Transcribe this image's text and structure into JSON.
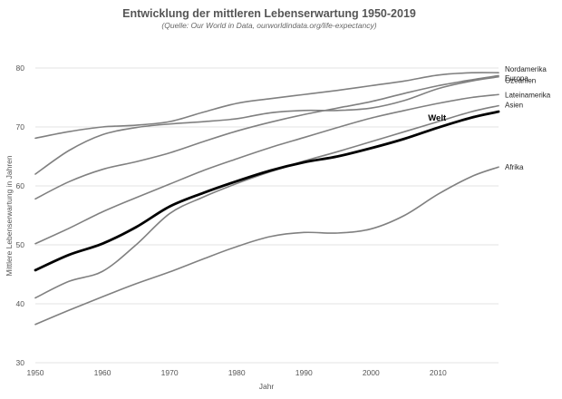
{
  "chart_data": {
    "type": "line",
    "title": "Entwicklung der mittleren Lebenserwartung 1950-2019",
    "subtitle": "(Quelle: Our World in Data, ourworldindata.org/life-expectancy)",
    "xlabel": "Jahr",
    "ylabel": "Mittlere Lebenserwartung in Jahren",
    "xlim": [
      1950,
      2019
    ],
    "ylim": [
      30,
      80
    ],
    "x_ticks": [
      1950,
      1960,
      1970,
      1980,
      1990,
      2000,
      2010
    ],
    "y_ticks": [
      30,
      40,
      50,
      60,
      70,
      80
    ],
    "grid": "horizontal",
    "colors": {
      "regions": "#808080",
      "world": "#000000"
    },
    "x": [
      1950,
      1955,
      1960,
      1965,
      1970,
      1975,
      1980,
      1985,
      1990,
      1995,
      2000,
      2005,
      2010,
      2015,
      2019
    ],
    "series": [
      {
        "name": "Nordamerika",
        "values": [
          68.1,
          69.2,
          70.0,
          70.3,
          70.9,
          72.5,
          74.0,
          74.8,
          75.5,
          76.2,
          77.0,
          77.8,
          78.8,
          79.2,
          79.2
        ]
      },
      {
        "name": "Europa",
        "values": [
          62.0,
          66.0,
          68.7,
          69.9,
          70.5,
          70.9,
          71.4,
          72.4,
          72.8,
          72.8,
          73.2,
          74.5,
          76.5,
          77.8,
          78.5
        ]
      },
      {
        "name": "Ozeanien",
        "values": [
          57.8,
          60.7,
          62.8,
          64.1,
          65.6,
          67.5,
          69.3,
          70.8,
          72.1,
          73.2,
          74.3,
          75.7,
          77.0,
          78.0,
          78.7
        ]
      },
      {
        "name": "Lateinamerika",
        "values": [
          50.2,
          52.8,
          55.6,
          58.0,
          60.3,
          62.6,
          64.6,
          66.5,
          68.2,
          69.9,
          71.5,
          72.8,
          74.0,
          75.0,
          75.5
        ]
      },
      {
        "name": "Asien",
        "values": [
          41.0,
          43.8,
          45.5,
          50.0,
          55.3,
          58.1,
          60.4,
          62.4,
          64.2,
          65.8,
          67.5,
          69.2,
          70.9,
          72.6,
          73.6
        ]
      },
      {
        "name": "Welt",
        "values": [
          45.7,
          48.3,
          50.2,
          53.0,
          56.5,
          58.8,
          60.8,
          62.6,
          64.0,
          65.0,
          66.4,
          68.0,
          69.9,
          71.6,
          72.6
        ]
      },
      {
        "name": "Afrika",
        "values": [
          36.5,
          38.9,
          41.2,
          43.4,
          45.4,
          47.6,
          49.7,
          51.4,
          52.1,
          52.0,
          52.7,
          55.0,
          58.6,
          61.6,
          63.2
        ]
      }
    ]
  }
}
